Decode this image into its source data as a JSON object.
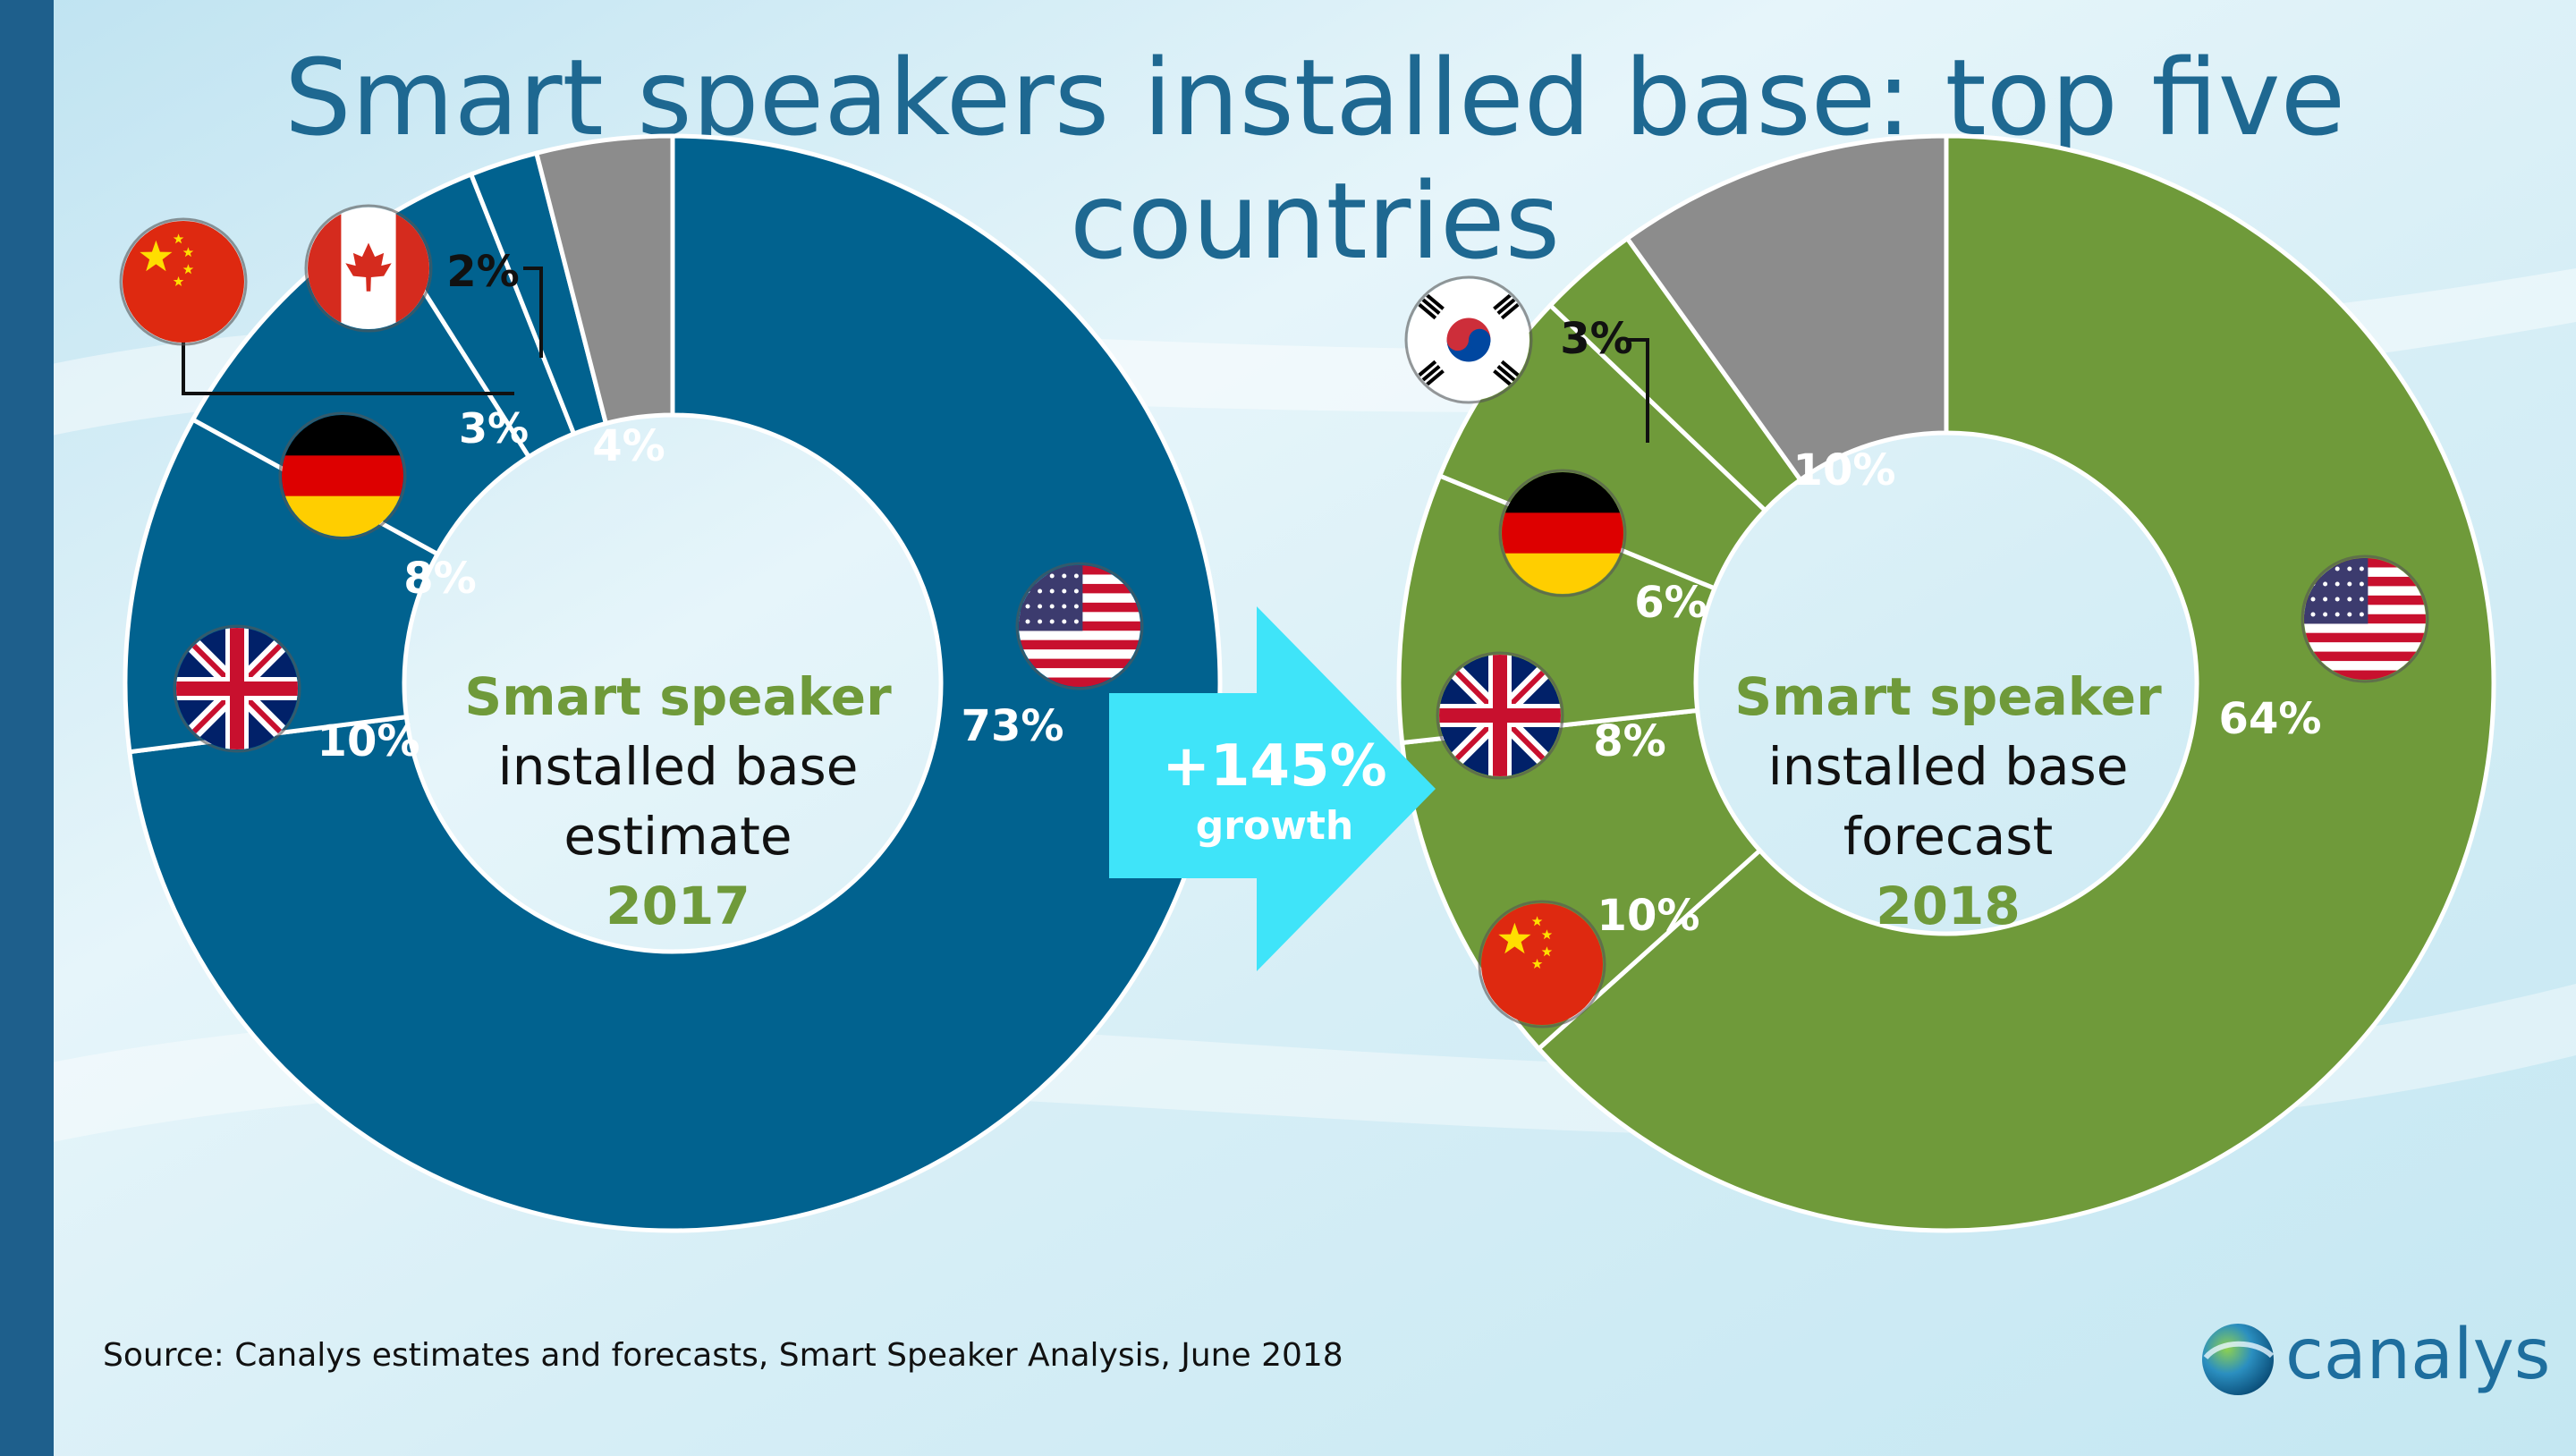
{
  "title": "Smart speakers installed base: top five countries",
  "source": "Source: Canalys estimates and forecasts, Smart Speaker Analysis, June 2018",
  "logo_text": "canalys",
  "growth": {
    "value": "+145%",
    "label": "growth"
  },
  "colors": {
    "donut_2017": "#01628f",
    "donut_2018": "#6f9a3a",
    "other": "#8c8c8c",
    "arrow": "#3fe4f9",
    "title": "#1e6891"
  },
  "chart_data": [
    {
      "type": "pie",
      "center_text": {
        "line1": "Smart speaker",
        "line2": "installed base",
        "line3": "estimate",
        "year": "2017"
      },
      "slices": [
        {
          "country": "USA",
          "value": 73,
          "label": "73%",
          "flag": "us-flag"
        },
        {
          "country": "UK",
          "value": 10,
          "label": "10%",
          "flag": "uk-flag"
        },
        {
          "country": "Germany",
          "value": 8,
          "label": "8%",
          "flag": "germany-flag"
        },
        {
          "country": "China",
          "value": 3,
          "label": "3%",
          "flag": "china-flag"
        },
        {
          "country": "Canada",
          "value": 2,
          "label": "2%",
          "flag": "canada-flag"
        },
        {
          "country": "Other",
          "value": 4,
          "label": "4%"
        }
      ]
    },
    {
      "type": "pie",
      "center_text": {
        "line1": "Smart speaker",
        "line2": "installed base",
        "line3": "forecast",
        "year": "2018"
      },
      "slices": [
        {
          "country": "USA",
          "value": 64,
          "label": "64%",
          "flag": "us-flag"
        },
        {
          "country": "China",
          "value": 10,
          "label": "10%",
          "flag": "china-flag"
        },
        {
          "country": "UK",
          "value": 8,
          "label": "8%",
          "flag": "uk-flag"
        },
        {
          "country": "Germany",
          "value": 6,
          "label": "6%",
          "flag": "germany-flag"
        },
        {
          "country": "South Korea",
          "value": 3,
          "label": "3%",
          "flag": "south-korea-flag"
        },
        {
          "country": "Other",
          "value": 10,
          "label": "10%"
        }
      ]
    }
  ]
}
